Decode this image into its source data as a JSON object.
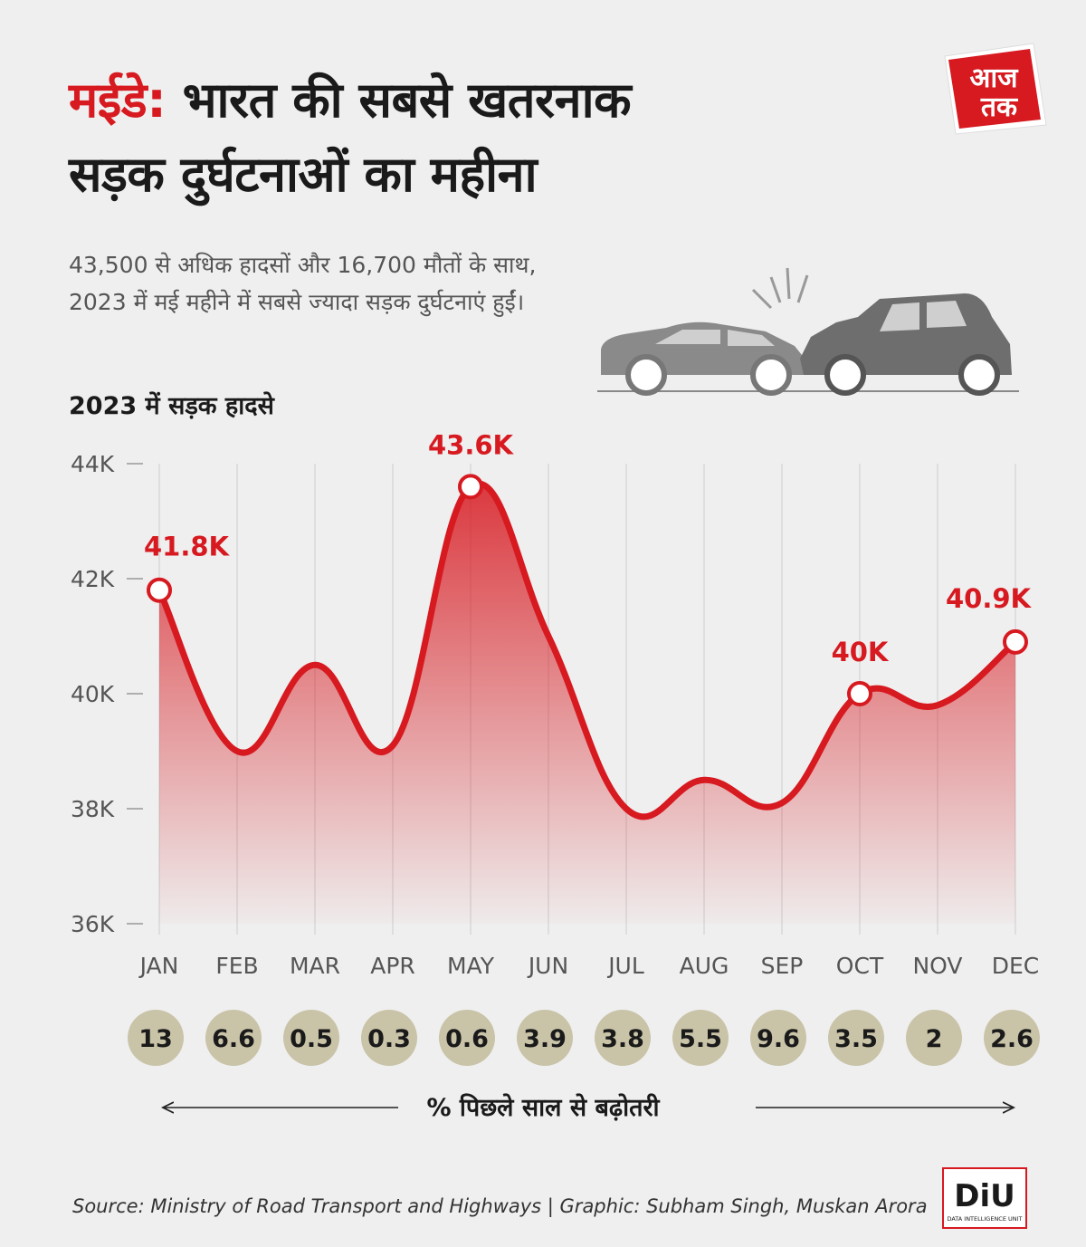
{
  "header": {
    "title_highlight": "मईडे:",
    "title_line1_rest": " भारत की सबसे खतरनाक",
    "title_line2": "सड़क दुर्घटनाओं का महीना",
    "subtitle": "43,500 से अधिक हादसों और 16,700 मौतों के साथ, 2023 में मई महीने में सबसे ज्यादा सड़क दुर्घटनाएं हुईं।"
  },
  "logo": {
    "line1": "आज",
    "line2": "तक",
    "icon": "aaj-tak-logo"
  },
  "illustration": {
    "icon": "car-crash-icon"
  },
  "colors": {
    "accent": "#d71920",
    "badge": "#c9c3a8",
    "axis_text": "#555555",
    "background": "#efefef"
  },
  "chart_data": {
    "type": "area",
    "title": "2023 में सड़क हादसे",
    "categories": [
      "JAN",
      "FEB",
      "MAR",
      "APR",
      "MAY",
      "JUN",
      "JUL",
      "AUG",
      "SEP",
      "OCT",
      "NOV",
      "DEC"
    ],
    "series": [
      {
        "values": [
          41.8,
          39.0,
          40.5,
          39.1,
          43.6,
          41.0,
          38.0,
          38.5,
          38.1,
          40.0,
          39.8,
          40.9
        ]
      }
    ],
    "unit": "K",
    "ylim": [
      36,
      44
    ],
    "yticks": [
      36,
      38,
      40,
      42,
      44
    ],
    "ytick_labels": [
      "36K",
      "38K",
      "40K",
      "42K",
      "44K"
    ],
    "grid": "vertical",
    "data_labels": [
      {
        "index": 0,
        "text": "41.8K"
      },
      {
        "index": 4,
        "text": "43.6K"
      },
      {
        "index": 9,
        "text": "40K"
      },
      {
        "index": 11,
        "text": "40.9K"
      }
    ],
    "growth_label": "% पिछले साल से बढ़ोतरी",
    "growth_pct": [
      "13",
      "6.6",
      "0.5",
      "0.3",
      "0.6",
      "3.9",
      "3.8",
      "5.5",
      "9.6",
      "3.5",
      "2",
      "2.6"
    ]
  },
  "footer": {
    "source": "Source: Ministry of Road Transport and Highways | Graphic: Subham Singh, Muskan Arora",
    "diu_text": "DiU",
    "diu_sub": "DATA INTELLIGENCE UNIT"
  }
}
